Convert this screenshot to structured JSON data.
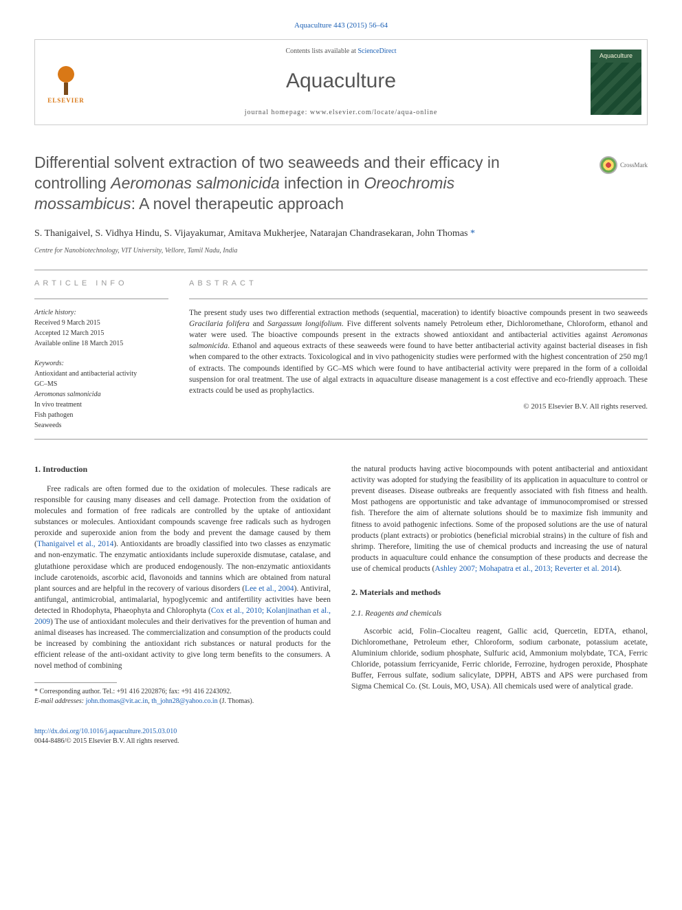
{
  "journal_ref": {
    "text": "Aquaculture 443 (2015) 56–64",
    "link_text": "Aquaculture 443 (2015) 56–64"
  },
  "header": {
    "contents_pre": "Contents lists available at ",
    "contents_link": "ScienceDirect",
    "journal_name": "Aquaculture",
    "homepage_label": "journal homepage: ",
    "homepage_url": "www.elsevier.com/locate/aqua-online",
    "elsevier_label": "ELSEVIER",
    "cover_label": "Aquaculture"
  },
  "crossmark_label": "CrossMark",
  "article": {
    "title_parts": [
      {
        "t": "Differential solvent extraction of two seaweeds and their efficacy in controlling ",
        "i": false
      },
      {
        "t": "Aeromonas salmonicida",
        "i": true
      },
      {
        "t": " infection in ",
        "i": false
      },
      {
        "t": "Oreochromis mossambicus",
        "i": true
      },
      {
        "t": ": A novel therapeutic approach",
        "i": false
      }
    ],
    "authors": "S. Thanigaivel, S. Vidhya Hindu, S. Vijayakumar, Amitava Mukherjee, Natarajan Chandrasekaran, John Thomas ",
    "corr_mark": "*",
    "affiliation": "Centre for Nanobiotechnology, VIT University, Vellore, Tamil Nadu, India"
  },
  "info": {
    "heading": "article info",
    "history_label": "Article history:",
    "received": "Received 9 March 2015",
    "accepted": "Accepted 12 March 2015",
    "online": "Available online 18 March 2015",
    "keywords_label": "Keywords:",
    "keywords": [
      "Antioxidant and antibacterial activity",
      "GC–MS",
      "Aeromonas salmonicida",
      "In vivo treatment",
      "Fish pathogen",
      "Seaweeds"
    ]
  },
  "abstract": {
    "heading": "abstract",
    "text_parts": [
      {
        "t": "The present study uses two differential extraction methods (sequential, maceration) to identify bioactive compounds present in two seaweeds ",
        "i": false
      },
      {
        "t": "Gracilaria folifera",
        "i": true
      },
      {
        "t": " and ",
        "i": false
      },
      {
        "t": "Sargassum longifolium",
        "i": true
      },
      {
        "t": ". Five different solvents namely Petroleum ether, Dichloromethane, Chloroform, ethanol and water were used. The bioactive compounds present in the extracts showed antioxidant and antibacterial activities against ",
        "i": false
      },
      {
        "t": "Aeromonas salmonicida",
        "i": true
      },
      {
        "t": ". Ethanol and aqueous extracts of these seaweeds were found to have better antibacterial activity against bacterial diseases in fish when compared to the other extracts. Toxicological and in vivo pathogenicity studies were performed with the highest concentration of 250 mg/l of extracts. The compounds identified by GC–MS which were found to have antibacterial activity were prepared in the form of a colloidal suspension for oral treatment. The use of algal extracts in aquaculture disease management is a cost effective and eco-friendly approach. These extracts could be used as prophylactics.",
        "i": false
      }
    ],
    "copyright": "© 2015 Elsevier B.V. All rights reserved."
  },
  "sections": {
    "intro_heading": "1. Introduction",
    "intro_para_parts": [
      {
        "t": "Free radicals are often formed due to the oxidation of molecules. These radicals are responsible for causing many diseases and cell damage. Protection from the oxidation of molecules and formation of free radicals are controlled by the uptake of antioxidant substances or molecules. Antioxidant compounds scavenge free radicals such as hydrogen peroxide and superoxide anion from the body and prevent the damage caused by them (",
        "ref": false
      },
      {
        "t": "Thanigaivel et al., 2014",
        "ref": true
      },
      {
        "t": "). Antioxidants are broadly classified into two classes as enzymatic and non-enzymatic. The enzymatic antioxidants include superoxide dismutase, catalase, and glutathione peroxidase which are produced endogenously. The non-enzymatic antioxidants include carotenoids, ascorbic acid, flavonoids and tannins which are obtained from natural plant sources and are helpful in the recovery of various disorders (",
        "ref": false
      },
      {
        "t": "Lee et al., 2004",
        "ref": true
      },
      {
        "t": "). Antiviral, antifungal, antimicrobial, antimalarial, hypoglycemic and antifertility activities have been detected in Rhodophyta, Phaeophyta and Chlorophyta (",
        "ref": false
      },
      {
        "t": "Cox et al., 2010; Kolanjinathan et al., 2009",
        "ref": true
      },
      {
        "t": ") The use of antioxidant molecules and their derivatives for the prevention of human and animal diseases has increased. The commercialization and consumption of the products could be increased by combining the antioxidant rich substances or natural products for the efficient release of the anti-oxidant activity to give long term benefits to the consumers. A novel method of combining",
        "ref": false
      }
    ],
    "intro_col2_parts": [
      {
        "t": "the natural products having active biocompounds with potent antibacterial and antioxidant activity was adopted for studying the feasibility of its application in aquaculture to control or prevent diseases. Disease outbreaks are frequently associated with fish fitness and health. Most pathogens are opportunistic and take advantage of immunocompromised or stressed fish. Therefore the aim of alternate solutions should be to maximize fish immunity and fitness to avoid pathogenic infections. Some of the proposed solutions are the use of natural products (plant extracts) or probiotics (beneficial microbial strains) in the culture of fish and shrimp. Therefore, limiting the use of chemical products and increasing the use of natural products in aquaculture could enhance the consumption of these products and decrease the use of chemical products (",
        "ref": false
      },
      {
        "t": "Ashley 2007; Mohapatra et al., 2013; Reverter et al. 2014",
        "ref": true
      },
      {
        "t": ").",
        "ref": false
      }
    ],
    "methods_heading": "2. Materials and methods",
    "reagents_heading": "2.1. Reagents and chemicals",
    "reagents_para": "Ascorbic acid, Folin–Ciocalteu reagent, Gallic acid, Quercetin, EDTA, ethanol, Dichloromethane, Petroleum ether, Chloroform, sodium carbonate, potassium acetate, Aluminium chloride, sodium phosphate, Sulfuric acid, Ammonium molybdate, TCA, Ferric Chloride, potassium ferricyanide, Ferric chloride, Ferrozine, hydrogen peroxide, Phosphate Buffer, Ferrous sulfate, sodium salicylate, DPPH, ABTS and APS were purchased from Sigma Chemical Co. (St. Louis, MO, USA). All chemicals used were of analytical grade."
  },
  "footnote": {
    "corr": "* Corresponding author. Tel.: +91 416 2202876; fax: +91 416 2243092.",
    "email_label": "E-mail addresses: ",
    "email1": "john.thomas@vit.ac.in",
    "email_sep": ", ",
    "email2": "th_john28@yahoo.co.in",
    "email_tail": " (J. Thomas)."
  },
  "footer": {
    "doi": "http://dx.doi.org/10.1016/j.aquaculture.2015.03.010",
    "issn": "0044-8486/© 2015 Elsevier B.V. All rights reserved."
  },
  "colors": {
    "link": "#1a5fb4",
    "text": "#333333",
    "muted": "#999999",
    "elsevier_orange": "#d97816",
    "cover_green": "#2b5a3e"
  },
  "typography": {
    "body_font": "Georgia, Times New Roman, serif",
    "heading_font": "Helvetica Neue, Arial, sans-serif",
    "title_size_pt": 23,
    "journal_title_size_pt": 30,
    "body_size_pt": 11.5,
    "small_size_pt": 10
  }
}
